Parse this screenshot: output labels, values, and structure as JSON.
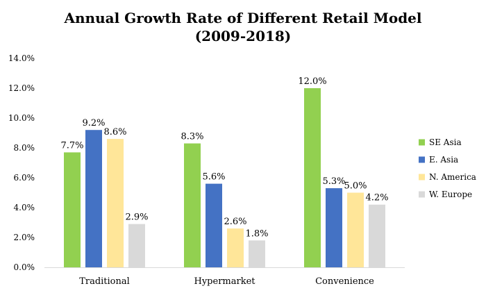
{
  "chart_data": {
    "type": "bar",
    "title_lines": [
      "Annual Growth Rate of Different Retail Model",
      "(2009-2018)"
    ],
    "categories": [
      "Traditional",
      "Hypermarket",
      "Convenience"
    ],
    "series": [
      {
        "name": "SE Asia",
        "color": "#92d050",
        "values": [
          7.7,
          8.3,
          12.0
        ]
      },
      {
        "name": "E. Asia",
        "color": "#4472c4",
        "values": [
          9.2,
          5.6,
          5.3
        ]
      },
      {
        "name": "N. America",
        "color": "#ffe699",
        "values": [
          8.6,
          2.6,
          5.0
        ]
      },
      {
        "name": "W. Europe",
        "color": "#d9d9d9",
        "values": [
          2.9,
          1.8,
          4.2
        ]
      }
    ],
    "value_format": "percent_1dp",
    "ylim": [
      0,
      14
    ],
    "y_ticks": [
      "0.0%",
      "2.0%",
      "4.0%",
      "6.0%",
      "8.0%",
      "10.0%",
      "12.0%",
      "14.0%"
    ],
    "grid": false,
    "legend_position": "right",
    "xlabel": "",
    "ylabel": ""
  }
}
